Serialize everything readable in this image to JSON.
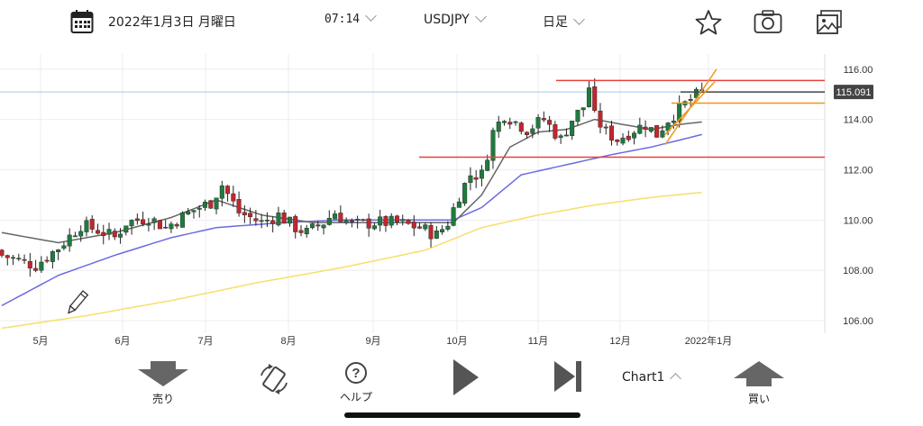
{
  "header": {
    "date": "2022年1月3日 月曜日",
    "time": "07:14",
    "symbol": "USDJPY",
    "timeframe": "日足"
  },
  "price_label": "115.091",
  "toolbar": {
    "sell_label": "売り",
    "help_label": "ヘルプ",
    "chart_label": "Chart1",
    "buy_label": "買い"
  },
  "colors": {
    "up": "#1f7a3e",
    "down": "#c0272d",
    "ma_short": "#666666",
    "ma_mid": "#6a6ae0",
    "ma_long": "#f6df6a",
    "resistance": "#e8423a",
    "channel": "#f0961a",
    "price_line": "#444444",
    "bid_line": "#a8c8e8"
  },
  "chart_data": {
    "type": "candlestick",
    "symbol": "USDJPY",
    "timeframe": "日足",
    "ylim": [
      105.5,
      116.6
    ],
    "yticks": [
      "116.00",
      "114.00",
      "112.00",
      "110.00",
      "108.00",
      "106.00"
    ],
    "x_tick_labels": [
      "5月",
      "6月",
      "7月",
      "8月",
      "9月",
      "10月",
      "11月",
      "12月",
      "2022年1月"
    ],
    "last_price": 115.091,
    "horizontal_lines": [
      115.55,
      112.5,
      114.65,
      115.09
    ],
    "close_path": [
      [
        0,
        108.6
      ],
      [
        6,
        108.2
      ],
      [
        10,
        108.9
      ],
      [
        14,
        109.8
      ],
      [
        17,
        109.6
      ],
      [
        20,
        109.3
      ],
      [
        22,
        109.9
      ],
      [
        26,
        110.1
      ],
      [
        29,
        109.7
      ],
      [
        31,
        110.0
      ],
      [
        34,
        110.4
      ],
      [
        37,
        110.7
      ],
      [
        39,
        111.4
      ],
      [
        42,
        110.3
      ],
      [
        46,
        109.9
      ],
      [
        49,
        110.2
      ],
      [
        52,
        109.7
      ],
      [
        54,
        109.5
      ],
      [
        57,
        109.9
      ],
      [
        59,
        110.3
      ],
      [
        62,
        109.8
      ],
      [
        66,
        109.9
      ],
      [
        70,
        109.9
      ],
      [
        74,
        109.7
      ],
      [
        77,
        109.4
      ],
      [
        79,
        109.9
      ],
      [
        81,
        111.0
      ],
      [
        83,
        111.8
      ],
      [
        85,
        111.8
      ],
      [
        87,
        113.5
      ],
      [
        89,
        114.2
      ],
      [
        91,
        113.9
      ],
      [
        93,
        113.6
      ],
      [
        96,
        114.0
      ],
      [
        99,
        113.2
      ],
      [
        101,
        114.0
      ],
      [
        103,
        114.5
      ],
      [
        104,
        115.3
      ],
      [
        105,
        114.1
      ],
      [
        107,
        113.5
      ],
      [
        109,
        113.2
      ],
      [
        112,
        113.6
      ],
      [
        114,
        113.8
      ],
      [
        116,
        113.4
      ],
      [
        118,
        114.0
      ],
      [
        120,
        114.4
      ],
      [
        122,
        114.8
      ],
      [
        124,
        115.09
      ]
    ],
    "ma_short": [
      [
        0,
        109.5
      ],
      [
        10,
        109.1
      ],
      [
        20,
        109.5
      ],
      [
        30,
        110.1
      ],
      [
        38,
        110.8
      ],
      [
        46,
        110.2
      ],
      [
        55,
        109.9
      ],
      [
        65,
        109.9
      ],
      [
        75,
        109.9
      ],
      [
        80,
        109.9
      ],
      [
        85,
        111.0
      ],
      [
        90,
        112.9
      ],
      [
        95,
        113.5
      ],
      [
        100,
        113.6
      ],
      [
        105,
        114.0
      ],
      [
        110,
        113.8
      ],
      [
        115,
        113.6
      ],
      [
        120,
        113.8
      ],
      [
        124,
        113.9
      ]
    ],
    "ma_mid": [
      [
        0,
        106.6
      ],
      [
        10,
        107.8
      ],
      [
        20,
        108.6
      ],
      [
        30,
        109.3
      ],
      [
        38,
        109.7
      ],
      [
        50,
        109.9
      ],
      [
        60,
        110.0
      ],
      [
        70,
        110.0
      ],
      [
        80,
        110.0
      ],
      [
        85,
        110.5
      ],
      [
        92,
        111.8
      ],
      [
        100,
        112.2
      ],
      [
        108,
        112.6
      ],
      [
        115,
        112.9
      ],
      [
        124,
        113.4
      ]
    ],
    "ma_long": [
      [
        0,
        105.7
      ],
      [
        15,
        106.2
      ],
      [
        30,
        106.8
      ],
      [
        45,
        107.5
      ],
      [
        60,
        108.1
      ],
      [
        75,
        108.8
      ],
      [
        85,
        109.7
      ],
      [
        95,
        110.2
      ],
      [
        105,
        110.6
      ],
      [
        115,
        110.9
      ],
      [
        124,
        111.1
      ]
    ]
  }
}
